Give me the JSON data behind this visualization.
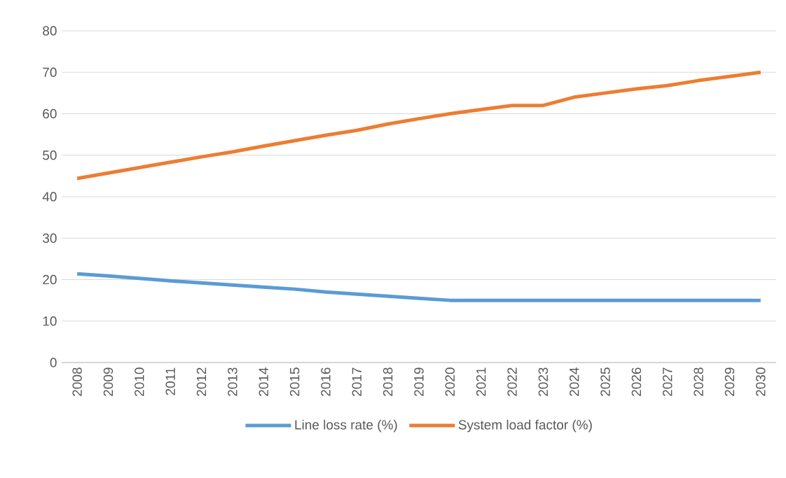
{
  "chart_data": {
    "type": "line",
    "categories": [
      "2008",
      "2009",
      "2010",
      "2011",
      "2012",
      "2013",
      "2014",
      "2015",
      "2016",
      "2017",
      "2018",
      "2019",
      "2020",
      "2021",
      "2022",
      "2023",
      "2024",
      "2025",
      "2026",
      "2027",
      "2028",
      "2029",
      "2030"
    ],
    "series": [
      {
        "name": "Line loss rate (%)",
        "color": "#5b9bd5",
        "values": [
          21.4,
          20.9,
          20.3,
          19.7,
          19.2,
          18.7,
          18.2,
          17.7,
          17.0,
          16.5,
          16.0,
          15.5,
          15.0,
          15.0,
          15.0,
          15.0,
          15.0,
          15.0,
          15.0,
          15.0,
          15.0,
          15.0,
          15.0
        ]
      },
      {
        "name": "System load factor (%)",
        "color": "#ed7d31",
        "values": [
          44.4,
          45.7,
          47.0,
          48.3,
          49.6,
          50.8,
          52.2,
          53.5,
          54.8,
          56.0,
          57.5,
          58.8,
          60.0,
          61.0,
          62.0,
          62.0,
          64.0,
          65.0,
          66.0,
          66.8,
          68.0,
          69.0,
          70.0
        ]
      }
    ],
    "ylim": [
      0,
      80
    ],
    "yticks": [
      0,
      10,
      20,
      30,
      40,
      50,
      60,
      70,
      80
    ],
    "grid": "y",
    "legend": "bottom"
  }
}
